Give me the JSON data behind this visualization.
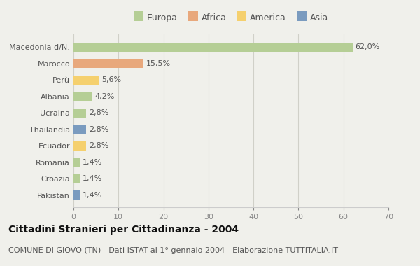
{
  "categories": [
    "Macedonia d/N.",
    "Marocco",
    "Perù",
    "Albania",
    "Ucraina",
    "Thailandia",
    "Ecuador",
    "Romania",
    "Croazia",
    "Pakistan"
  ],
  "values": [
    62.0,
    15.5,
    5.6,
    4.2,
    2.8,
    2.8,
    2.8,
    1.4,
    1.4,
    1.4
  ],
  "labels": [
    "62,0%",
    "15,5%",
    "5,6%",
    "4,2%",
    "2,8%",
    "2,8%",
    "2,8%",
    "1,4%",
    "1,4%",
    "1,4%"
  ],
  "continents": [
    "Europa",
    "Africa",
    "America",
    "Europa",
    "Europa",
    "Asia",
    "America",
    "Europa",
    "Europa",
    "Asia"
  ],
  "colors": {
    "Europa": "#b5ce95",
    "Africa": "#e8a87c",
    "America": "#f5d06e",
    "Asia": "#7a9bbf"
  },
  "xlim": [
    0,
    70
  ],
  "xticks": [
    0,
    10,
    20,
    30,
    40,
    50,
    60,
    70
  ],
  "title": "Cittadini Stranieri per Cittadinanza - 2004",
  "subtitle": "COMUNE DI GIOVO (TN) - Dati ISTAT al 1° gennaio 2004 - Elaborazione TUTTITALIA.IT",
  "background_color": "#f0f0eb",
  "bar_height": 0.55,
  "title_fontsize": 10,
  "subtitle_fontsize": 8,
  "label_fontsize": 8,
  "tick_fontsize": 8,
  "legend_fontsize": 9
}
